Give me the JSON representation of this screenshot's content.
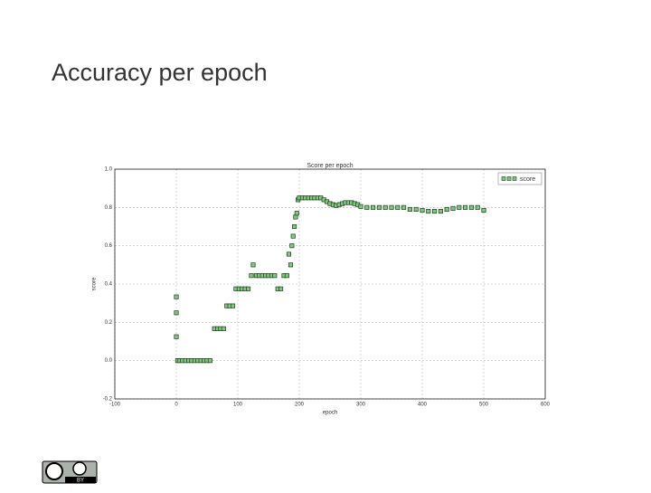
{
  "slide_title": "Accuracy per epoch",
  "license_badge": "BY",
  "chart_data": {
    "type": "scatter",
    "title": "Score per epoch",
    "x_label": "epoch",
    "y_label": "score",
    "xlim": [
      -100,
      600
    ],
    "xticks": [
      -100,
      0,
      100,
      200,
      300,
      400,
      500,
      600
    ],
    "ylim": [
      -0.2,
      1.0
    ],
    "yticks": [
      -0.2,
      {
        "value": 0,
        "label": "0.0"
      },
      0.2,
      0.4,
      0.6,
      0.8,
      {
        "value": 1,
        "label": "1.0"
      }
    ],
    "grid": true,
    "legend": "upper right",
    "series": [
      {
        "name": "score",
        "color": "#7fc97f",
        "x": [
          0,
          0,
          0,
          2,
          5,
          10,
          15,
          20,
          25,
          30,
          35,
          40,
          45,
          50,
          55,
          62,
          67,
          72,
          77,
          82,
          87,
          92,
          97,
          102,
          107,
          112,
          117,
          122,
          125,
          130,
          135,
          140,
          145,
          150,
          155,
          160,
          165,
          170,
          175,
          180,
          183,
          186,
          188,
          190,
          192,
          194,
          196,
          198,
          200,
          205,
          210,
          215,
          220,
          225,
          230,
          235,
          240,
          245,
          250,
          255,
          260,
          265,
          270,
          275,
          280,
          285,
          290,
          295,
          300,
          310,
          320,
          330,
          340,
          350,
          360,
          370,
          380,
          390,
          400,
          410,
          420,
          430,
          440,
          450,
          460,
          470,
          480,
          490,
          500
        ],
        "values": [
          0.125,
          0.25,
          0.333,
          0,
          0,
          0,
          0,
          0,
          0,
          0,
          0,
          0,
          0,
          0,
          0,
          0.167,
          0.167,
          0.167,
          0.167,
          0.286,
          0.286,
          0.286,
          0.375,
          0.375,
          0.375,
          0.375,
          0.375,
          0.444,
          0.5,
          0.444,
          0.444,
          0.444,
          0.444,
          0.444,
          0.444,
          0.444,
          0.375,
          0.375,
          0.444,
          0.444,
          0.556,
          0.5,
          0.6,
          0.65,
          0.7,
          0.75,
          0.77,
          0.84,
          0.85,
          0.85,
          0.85,
          0.85,
          0.85,
          0.85,
          0.85,
          0.85,
          0.84,
          0.83,
          0.82,
          0.815,
          0.81,
          0.815,
          0.82,
          0.825,
          0.825,
          0.825,
          0.82,
          0.815,
          0.805,
          0.8,
          0.8,
          0.8,
          0.8,
          0.8,
          0.8,
          0.8,
          0.79,
          0.79,
          0.785,
          0.78,
          0.78,
          0.78,
          0.79,
          0.795,
          0.8,
          0.8,
          0.8,
          0.8,
          0.785
        ]
      }
    ]
  }
}
